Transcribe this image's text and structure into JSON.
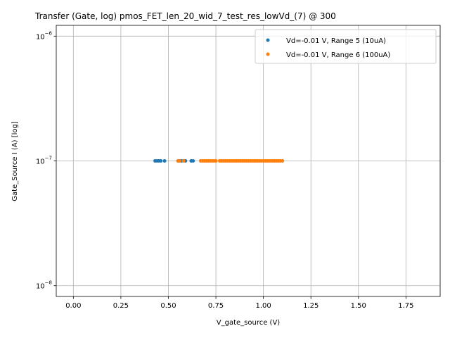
{
  "chart_data": {
    "type": "scatter",
    "title": "Transfer (Gate, log) pmos_FET_len_20_wid_7_test_res_lowVd_(7) @ 300",
    "xlabel": "V_gate_source (V)",
    "ylabel": "Gate_Source I (A) [log]",
    "xlim": [
      -0.09,
      1.93
    ],
    "ylim": [
      8.2e-09,
      1.22e-06
    ],
    "yscale": "log",
    "grid": true,
    "legend_position": "top-right",
    "x_ticks": [
      {
        "value": 0.0,
        "label": "0.00"
      },
      {
        "value": 0.25,
        "label": "0.25"
      },
      {
        "value": 0.5,
        "label": "0.50"
      },
      {
        "value": 0.75,
        "label": "0.75"
      },
      {
        "value": 1.0,
        "label": "1.00"
      },
      {
        "value": 1.25,
        "label": "1.25"
      },
      {
        "value": 1.5,
        "label": "1.50"
      },
      {
        "value": 1.75,
        "label": "1.75"
      }
    ],
    "y_ticks": [
      {
        "value": 1e-08,
        "base": "10",
        "exp": "−8"
      },
      {
        "value": 1e-07,
        "base": "10",
        "exp": "−7"
      },
      {
        "value": 1e-06,
        "base": "10",
        "exp": "−6"
      }
    ],
    "series": [
      {
        "name": "Vd=-0.01 V, Range 5 (10uA)",
        "color": "#1f77b4",
        "x": [
          0.43,
          0.44,
          0.45,
          0.46,
          0.48,
          0.56,
          0.57,
          0.59,
          0.62,
          0.63
        ],
        "y": [
          1e-07,
          1e-07,
          1e-07,
          1e-07,
          1e-07,
          1e-07,
          1e-07,
          1e-07,
          1e-07,
          1e-07
        ]
      },
      {
        "name": "Vd=-0.01 V, Range 6 (100uA)",
        "color": "#ff7f0e",
        "x": [
          0.55,
          0.56,
          0.58,
          0.67,
          0.68,
          0.69,
          0.7,
          0.71,
          0.72,
          0.73,
          0.74,
          0.75,
          0.77,
          0.78,
          0.79,
          0.8,
          0.81,
          0.82,
          0.83,
          0.84,
          0.85,
          0.86,
          0.87,
          0.88,
          0.89,
          0.9,
          0.91,
          0.92,
          0.93,
          0.94,
          0.95,
          0.96,
          0.97,
          0.98,
          0.99,
          1.0,
          1.01,
          1.02,
          1.03,
          1.04,
          1.05,
          1.06,
          1.07,
          1.08,
          1.09,
          1.1
        ],
        "y": [
          1e-07,
          1e-07,
          1e-07,
          1e-07,
          1e-07,
          1e-07,
          1e-07,
          1e-07,
          1e-07,
          1e-07,
          1e-07,
          1e-07,
          1e-07,
          1e-07,
          1e-07,
          1e-07,
          1e-07,
          1e-07,
          1e-07,
          1e-07,
          1e-07,
          1e-07,
          1e-07,
          1e-07,
          1e-07,
          1e-07,
          1e-07,
          1e-07,
          1e-07,
          1e-07,
          1e-07,
          1e-07,
          1e-07,
          1e-07,
          1e-07,
          1e-07,
          1e-07,
          1e-07,
          1e-07,
          1e-07,
          1e-07,
          1e-07,
          1e-07,
          1e-07,
          1e-07,
          1e-07
        ]
      }
    ]
  }
}
